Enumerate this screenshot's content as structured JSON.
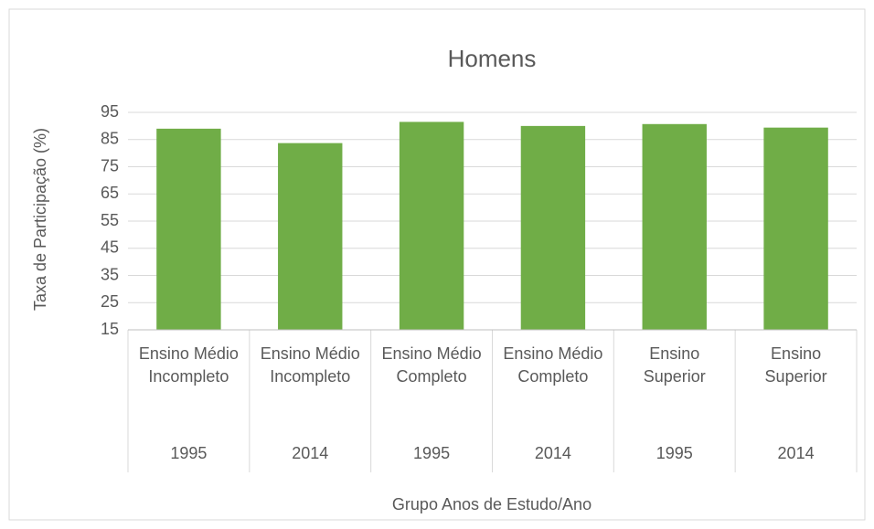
{
  "chart_data": {
    "type": "bar",
    "title": "Homens",
    "y_label": "Taxa de Participação (%)",
    "x_label": "Grupo Anos de Estudo/Ano",
    "categories": [
      "Ensino Médio Incompleto",
      "Ensino Médio Incompleto",
      "Ensino Médio Completo",
      "Ensino Médio Completo",
      "Ensino Superior",
      "Ensino Superior"
    ],
    "years": [
      "1995",
      "2014",
      "1995",
      "2014",
      "1995",
      "2014"
    ],
    "values": [
      89,
      83.7,
      91.5,
      90,
      90.7,
      89.4
    ],
    "color": "#70ad47",
    "ylim": [
      15,
      95
    ],
    "yticks": [
      15,
      25,
      35,
      45,
      55,
      65,
      75,
      85,
      95
    ],
    "grid": true
  }
}
